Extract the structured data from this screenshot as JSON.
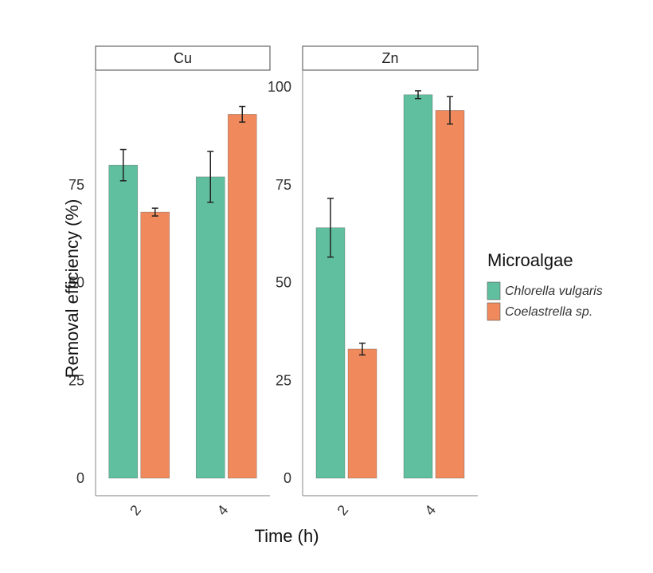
{
  "chart_data": {
    "type": "bar",
    "title": "",
    "xlabel": "Time (h)",
    "ylabel": "Removal efficiency (%)",
    "legend": {
      "title": "Microalgae",
      "position": "right",
      "entries": [
        "Chlorella vulgaris",
        "Coelastrella sp."
      ]
    },
    "colors": {
      "Chlorella vulgaris": "#5fbf9f",
      "Coelastrella sp.": "#f08a5d"
    },
    "categories": [
      "2",
      "4"
    ],
    "ylim": [
      0,
      100
    ],
    "facets": [
      {
        "label": "Cu",
        "yticks": [
          0,
          25,
          50,
          75
        ],
        "series": [
          {
            "name": "Chlorella vulgaris",
            "values": [
              80,
              77
            ],
            "errors": [
              4,
              6.5
            ]
          },
          {
            "name": "Coelastrella sp.",
            "values": [
              68,
              93
            ],
            "errors": [
              1,
              2
            ]
          }
        ]
      },
      {
        "label": "Zn",
        "yticks": [
          0,
          25,
          50,
          75,
          100
        ],
        "series": [
          {
            "name": "Chlorella vulgaris",
            "values": [
              64,
              98
            ],
            "errors": [
              7.5,
              1
            ]
          },
          {
            "name": "Coelastrella sp.",
            "values": [
              33,
              94
            ],
            "errors": [
              1.5,
              3.5
            ]
          }
        ]
      }
    ]
  }
}
